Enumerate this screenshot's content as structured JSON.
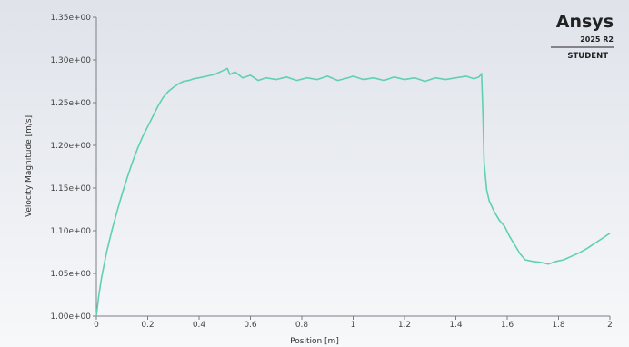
{
  "brand": {
    "name": "Ansys",
    "version": "2025 R2",
    "edition": "STUDENT"
  },
  "colors": {
    "series": "#5fd0b0",
    "background_top": "#dfe3ea",
    "background_bottom": "#f7f8fa",
    "axis": "#7a7f86"
  },
  "chart_data": {
    "type": "line",
    "title": "",
    "xlabel": "Position [m]",
    "ylabel": "Velocity Magnitude [m/s]",
    "xlim": [
      0,
      2
    ],
    "ylim": [
      1.0,
      1.35
    ],
    "x_ticks": [
      0,
      0.2,
      0.4,
      0.6,
      0.8,
      1,
      1.2,
      1.4,
      1.6,
      1.8,
      2
    ],
    "x_tick_labels": [
      "0",
      "0.2",
      "0.4",
      "0.6",
      "0.8",
      "1",
      "1.2",
      "1.4",
      "1.6",
      "1.8",
      "2"
    ],
    "y_ticks": [
      1.0,
      1.05,
      1.1,
      1.15,
      1.2,
      1.25,
      1.3,
      1.35
    ],
    "y_tick_labels": [
      "1.00e+00",
      "1.05e+00",
      "1.10e+00",
      "1.15e+00",
      "1.20e+00",
      "1.25e+00",
      "1.30e+00",
      "1.35e+00"
    ],
    "grid": false,
    "legend": "none",
    "series": [
      {
        "x": [
          0,
          0.01,
          0.02,
          0.04,
          0.06,
          0.08,
          0.1,
          0.12,
          0.14,
          0.16,
          0.18,
          0.2,
          0.22,
          0.24,
          0.26,
          0.28,
          0.3,
          0.32,
          0.34,
          0.36,
          0.38,
          0.4,
          0.43,
          0.46,
          0.49,
          0.51,
          0.52,
          0.54,
          0.57,
          0.6,
          0.63,
          0.66,
          0.7,
          0.74,
          0.78,
          0.82,
          0.86,
          0.9,
          0.94,
          0.98,
          1.0,
          1.04,
          1.08,
          1.12,
          1.16,
          1.2,
          1.24,
          1.28,
          1.32,
          1.36,
          1.4,
          1.44,
          1.47,
          1.49,
          1.5,
          1.505,
          1.51,
          1.52,
          1.53,
          1.55,
          1.57,
          1.59,
          1.61,
          1.63,
          1.65,
          1.67,
          1.7,
          1.73,
          1.76,
          1.79,
          1.82,
          1.85,
          1.88,
          1.91,
          1.94,
          1.97,
          2.0
        ],
        "y": [
          1.0,
          1.025,
          1.045,
          1.075,
          1.1,
          1.122,
          1.143,
          1.162,
          1.18,
          1.196,
          1.21,
          1.222,
          1.234,
          1.246,
          1.256,
          1.263,
          1.268,
          1.272,
          1.275,
          1.276,
          1.278,
          1.279,
          1.281,
          1.283,
          1.287,
          1.29,
          1.283,
          1.286,
          1.279,
          1.282,
          1.276,
          1.279,
          1.277,
          1.28,
          1.276,
          1.279,
          1.277,
          1.281,
          1.276,
          1.279,
          1.281,
          1.277,
          1.279,
          1.276,
          1.28,
          1.277,
          1.279,
          1.275,
          1.279,
          1.277,
          1.279,
          1.281,
          1.278,
          1.28,
          1.284,
          1.24,
          1.18,
          1.148,
          1.135,
          1.122,
          1.112,
          1.105,
          1.093,
          1.083,
          1.073,
          1.066,
          1.064,
          1.063,
          1.061,
          1.064,
          1.066,
          1.07,
          1.074,
          1.079,
          1.085,
          1.091,
          1.097
        ]
      }
    ]
  }
}
